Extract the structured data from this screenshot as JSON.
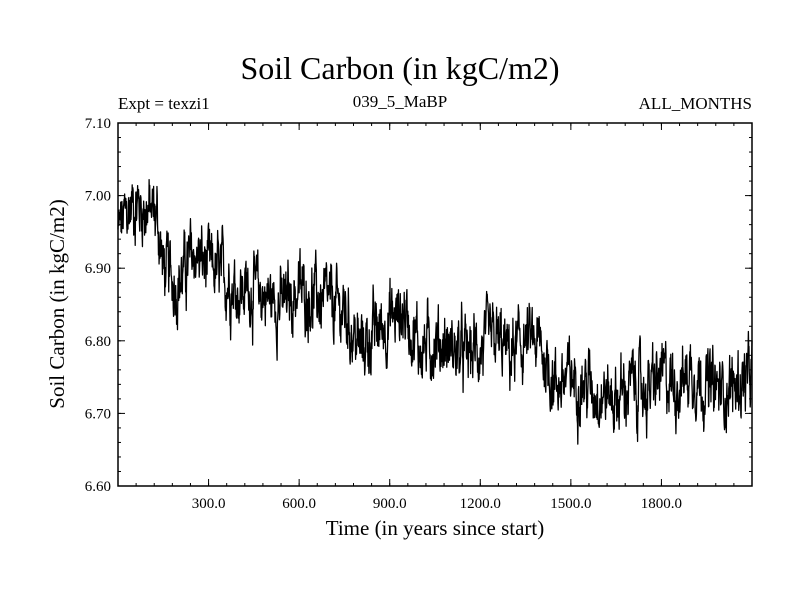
{
  "chart_data": {
    "type": "line",
    "title": "Soil Carbon (in kgC/m2)",
    "subtitle_left": "Expt = texzi1",
    "subtitle_center": "039_5_MaBP",
    "subtitle_right": "ALL_MONTHS",
    "xlabel": "Time (in years since start)",
    "ylabel": "Soil Carbon (in kgC/m2)",
    "xlim": [
      0,
      2100
    ],
    "ylim": [
      6.6,
      7.1
    ],
    "xticks": [
      300,
      600,
      900,
      1200,
      1500,
      1800
    ],
    "xtick_labels": [
      "300.0",
      "600.0",
      "900.0",
      "1200.0",
      "1500.0",
      "1800.0"
    ],
    "yticks": [
      6.6,
      6.7,
      6.8,
      6.9,
      7.0,
      7.1
    ],
    "ytick_labels": [
      "6.60",
      "6.70",
      "6.80",
      "6.90",
      "7.00",
      "7.10"
    ],
    "series": [
      {
        "name": "Soil Carbon",
        "color": "#000000",
        "x": [
          0,
          50,
          100,
          130,
          150,
          200,
          250,
          300,
          350,
          400,
          450,
          500,
          550,
          600,
          650,
          700,
          750,
          800,
          850,
          900,
          950,
          1000,
          1050,
          1100,
          1150,
          1200,
          1250,
          1300,
          1350,
          1400,
          1450,
          1500,
          1550,
          1600,
          1650,
          1700,
          1750,
          1800,
          1850,
          1900,
          1950,
          2000,
          2050,
          2100
        ],
        "values": [
          6.95,
          6.99,
          6.98,
          6.97,
          6.9,
          6.88,
          6.92,
          6.9,
          6.89,
          6.87,
          6.87,
          6.86,
          6.85,
          6.87,
          6.86,
          6.85,
          6.84,
          6.79,
          6.81,
          6.83,
          6.84,
          6.79,
          6.8,
          6.79,
          6.78,
          6.79,
          6.8,
          6.78,
          6.8,
          6.79,
          6.74,
          6.75,
          6.74,
          6.73,
          6.72,
          6.74,
          6.73,
          6.75,
          6.74,
          6.76,
          6.74,
          6.73,
          6.74,
          6.75
        ],
        "noise_amplitude": 0.05
      }
    ]
  }
}
